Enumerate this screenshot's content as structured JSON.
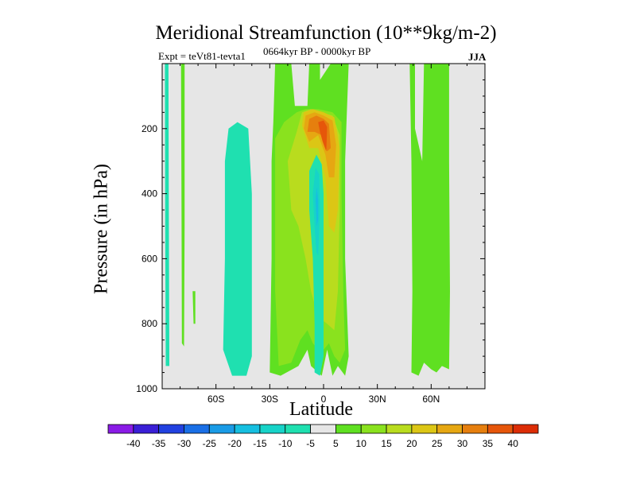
{
  "chart_data": {
    "type": "contour",
    "title": "Meridional Streamfunction (10**9kg/m-2)",
    "subtitle_left": "Expt = teVt81-tevta1",
    "subtitle_center": "0664kyr BP - 0000kyr BP",
    "subtitle_right": "JJA",
    "xlabel": "Latitude",
    "ylabel": "Pressure (in hPa)",
    "xlim": [
      -90,
      90
    ],
    "ylim": [
      1000,
      0
    ],
    "x_ticks": [
      {
        "value": -60,
        "label": "60S"
      },
      {
        "value": -30,
        "label": "30S"
      },
      {
        "value": 0,
        "label": "0"
      },
      {
        "value": 30,
        "label": "30N"
      },
      {
        "value": 60,
        "label": "60N"
      }
    ],
    "y_ticks": [
      {
        "value": 200,
        "label": "200"
      },
      {
        "value": 400,
        "label": "400"
      },
      {
        "value": 600,
        "label": "600"
      },
      {
        "value": 800,
        "label": "800"
      },
      {
        "value": 1000,
        "label": "1000"
      }
    ],
    "contour_levels": [
      -40,
      -35,
      -30,
      -25,
      -20,
      -15,
      -10,
      -5,
      5,
      10,
      15,
      20,
      25,
      30,
      35,
      40
    ],
    "colorbar_colors": [
      "#8a1be6",
      "#3a1fd6",
      "#2141e0",
      "#1a6fe6",
      "#1a9be6",
      "#16bfe0",
      "#17d3c8",
      "#1fe0b0",
      "#e6e6e6",
      "#5fe021",
      "#8ae21e",
      "#b9dc1e",
      "#dcc615",
      "#e6a712",
      "#e67f0e",
      "#e6560a",
      "#dc2d06"
    ],
    "background_color": "#e6e6e6",
    "regions": [
      {
        "level_band": "-10 to -5",
        "x_range": [
          -88,
          -86
        ],
        "p_range": [
          0,
          930
        ]
      },
      {
        "level_band": "5 to 10",
        "x_range": [
          -80,
          -77
        ],
        "p_range": [
          0,
          870
        ]
      },
      {
        "level_band": "-10 to -5",
        "x_range": [
          -56,
          -40
        ],
        "p_range": [
          180,
          960
        ]
      },
      {
        "level_band": "5 to 10",
        "x_range": [
          -30,
          14
        ],
        "p_range": [
          0,
          960
        ]
      },
      {
        "level_band": "10 to 15",
        "x_range": [
          -27,
          10
        ],
        "p_range": [
          160,
          950
        ]
      },
      {
        "level_band": "15 to 20",
        "x_range": [
          -14,
          10
        ],
        "p_range": [
          140,
          900
        ]
      },
      {
        "level_band": "-10 to -5",
        "x_range": [
          -8,
          -1
        ],
        "p_range": [
          270,
          960
        ]
      },
      {
        "level_band": "-15 to -10",
        "x_range": [
          -6,
          -2
        ],
        "p_range": [
          330,
          590
        ]
      },
      {
        "level_band": "20 to 35",
        "x_range": [
          -12,
          12
        ],
        "p_range": [
          150,
          520
        ]
      },
      {
        "level_band": "35 to 40",
        "x_range": [
          -3,
          1
        ],
        "p_range": [
          170,
          260
        ]
      },
      {
        "level_band": "5 to 10",
        "x_range": [
          48,
          71
        ],
        "p_range": [
          0,
          960
        ]
      }
    ]
  }
}
